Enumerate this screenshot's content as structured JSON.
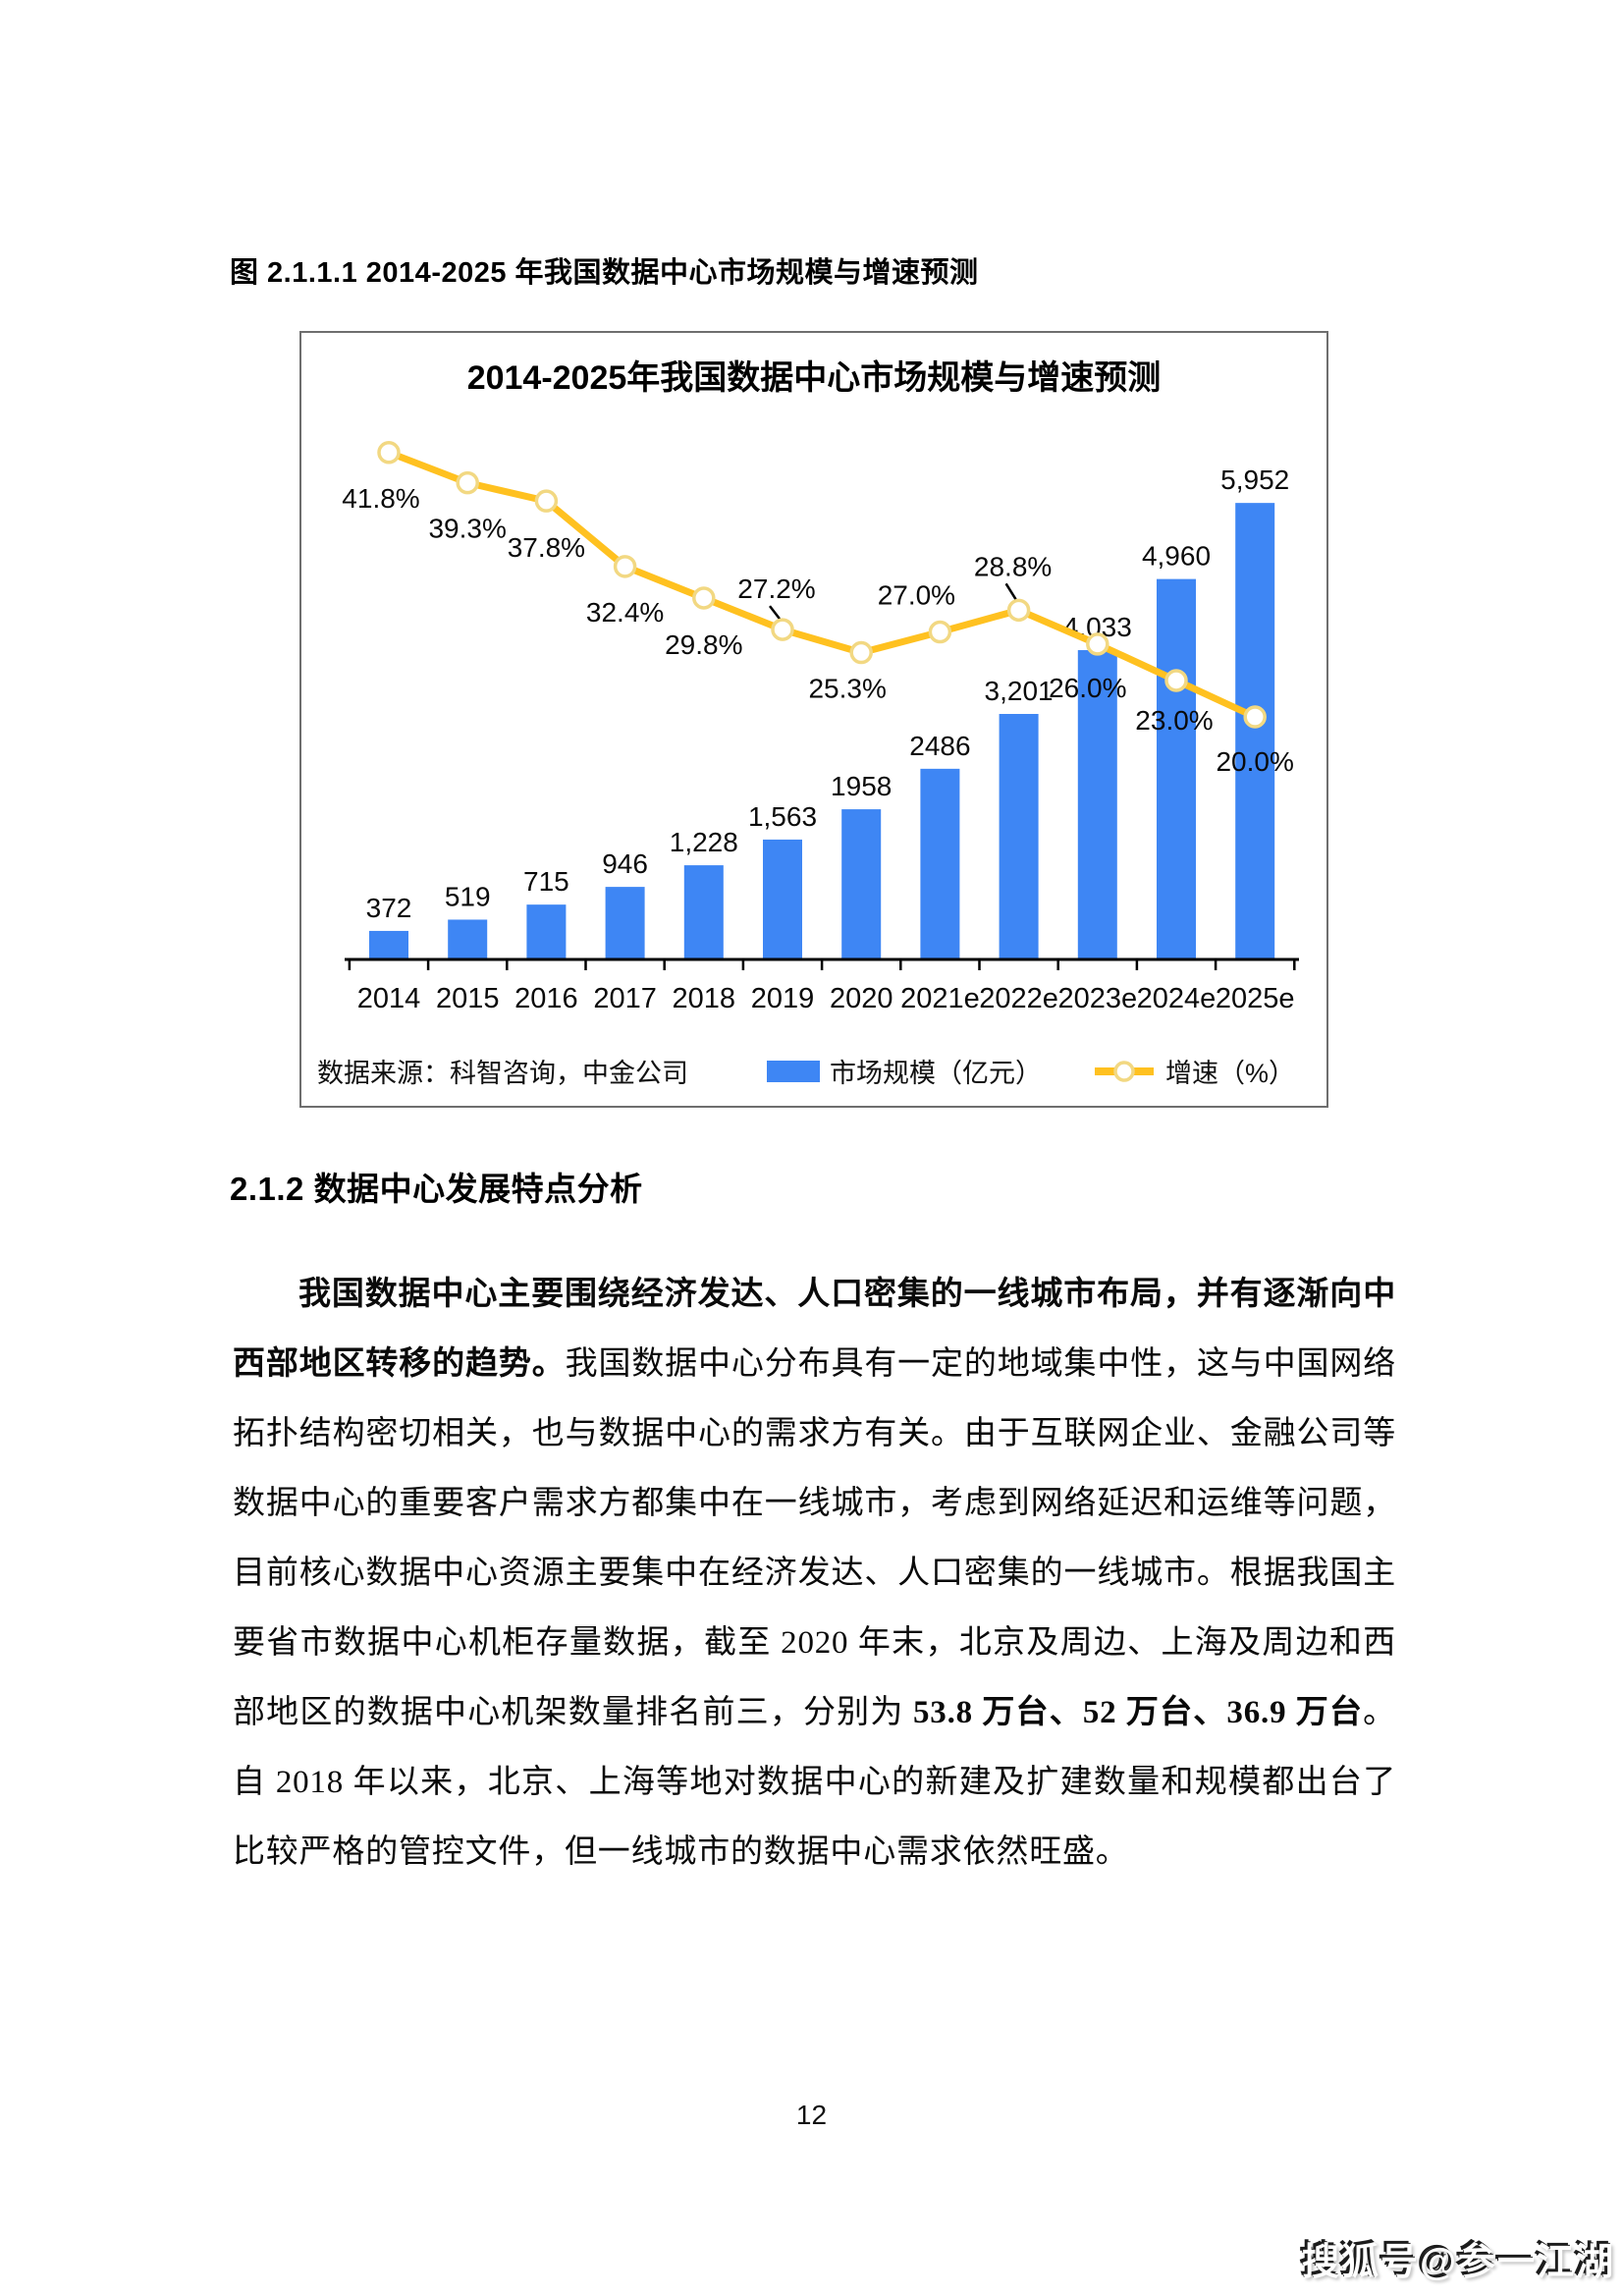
{
  "figure_caption": "图 2.1.1.1 2014-2025 年我国数据中心市场规模与增速预测",
  "section_heading": "2.1.2 数据中心发展特点分析",
  "paragraph_segments": [
    {
      "text": "我国数据中心主要围绕经济发达、人口密集的一线城市布局，并有逐渐向中西部地区转移的趋势。",
      "bold": true
    },
    {
      "text": "我国数据中心分布具有一定的地域集中性，这与中国网络拓扑结构密切相关，也与数据中心的需求方有关。由于互联网企业、金融公司等数据中心的重要客户需求方都集中在一线城市，考虑到网络延迟和运维等问题，目前核心数据中心资源主要集中在经济发达、人口密集的一线城市。根据我国主要省市数据中心机柜存量数据，截至 2020 年末，北京及周边、上海及周边和西部地区的数据中心机架数量排名前三，分别为 ",
      "bold": false
    },
    {
      "text": "53.8 万台、52 万台、36.9 万台",
      "bold": true
    },
    {
      "text": "。自 2018 年以来，北京、上海等地对数据中心的新建及扩建数量和规模都出台了比较严格的管控文件，但一线城市的数据中心需求依然旺盛。",
      "bold": false
    }
  ],
  "chart": {
    "title": "2014-2025年我国数据中心市场规模与增速预测",
    "source": "数据来源：科智咨询，中金公司",
    "legend": [
      {
        "label": "市场规模（亿元）",
        "type": "bar"
      },
      {
        "label": "增速（%）",
        "type": "line"
      }
    ]
  },
  "chart_data": {
    "type": "bar+line combo",
    "title": "2014-2025年我国数据中心市场规模与增速预测",
    "categories": [
      "2014",
      "2015",
      "2016",
      "2017",
      "2018",
      "2019",
      "2020",
      "2021e",
      "2022e",
      "2023e",
      "2024e",
      "2025e"
    ],
    "series": [
      {
        "name": "市场规模（亿元）",
        "type": "bar",
        "axis": "left",
        "color": "#3E86F4",
        "values": [
          372,
          519,
          715,
          946,
          1228,
          1563,
          1958,
          2486,
          3201,
          4033,
          4960,
          5952
        ],
        "labels": [
          "372",
          "519",
          "715",
          "946",
          "1,228",
          "1,563",
          "1958",
          "2486",
          "3,201",
          "4,033",
          "4,960",
          "5,952"
        ]
      },
      {
        "name": "增速（%）",
        "type": "line",
        "axis": "right",
        "color": "#FFC120",
        "marker_fill": "#FFFFFF",
        "marker_stroke": "#F2D882",
        "values": [
          41.8,
          39.3,
          37.8,
          32.4,
          29.8,
          27.2,
          25.3,
          27.0,
          28.8,
          26.0,
          23.0,
          20.0
        ],
        "labels": [
          "41.8%",
          "39.3%",
          "37.8%",
          "32.4%",
          "29.8%",
          "27.2%",
          "25.3%",
          "27.0%",
          "28.8%",
          "26.0%",
          "23.0%",
          "20.0%"
        ]
      }
    ],
    "xlabel": "",
    "ylabel_left": "市场规模（亿元）",
    "ylabel_right": "增速（%）",
    "grid": false,
    "legend_position": "bottom",
    "axis_labels_shown": false
  },
  "page": {
    "number": "12",
    "watermark": "搜狐号@参一江湖"
  }
}
